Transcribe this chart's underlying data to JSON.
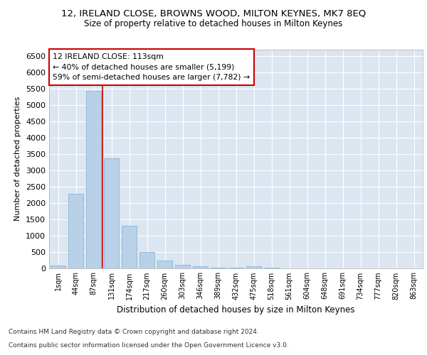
{
  "title1": "12, IRELAND CLOSE, BROWNS WOOD, MILTON KEYNES, MK7 8EQ",
  "title2": "Size of property relative to detached houses in Milton Keynes",
  "xlabel": "Distribution of detached houses by size in Milton Keynes",
  "ylabel": "Number of detached properties",
  "bar_color": "#b8d0e8",
  "bar_edge_color": "#7aafd4",
  "background_color": "#dce6f0",
  "grid_color": "#ffffff",
  "categories": [
    "1sqm",
    "44sqm",
    "87sqm",
    "131sqm",
    "174sqm",
    "217sqm",
    "260sqm",
    "303sqm",
    "346sqm",
    "389sqm",
    "432sqm",
    "475sqm",
    "518sqm",
    "561sqm",
    "604sqm",
    "648sqm",
    "691sqm",
    "734sqm",
    "777sqm",
    "820sqm",
    "863sqm"
  ],
  "values": [
    75,
    2280,
    5430,
    3360,
    1290,
    480,
    220,
    100,
    55,
    10,
    5,
    55,
    5,
    0,
    0,
    0,
    0,
    0,
    0,
    0,
    0
  ],
  "ylim": [
    0,
    6700
  ],
  "yticks": [
    0,
    500,
    1000,
    1500,
    2000,
    2500,
    3000,
    3500,
    4000,
    4500,
    5000,
    5500,
    6000,
    6500
  ],
  "property_line_x": 2.5,
  "annotation_text": "12 IRELAND CLOSE: 113sqm\n← 40% of detached houses are smaller (5,199)\n59% of semi-detached houses are larger (7,782) →",
  "annotation_box_color": "#ffffff",
  "annotation_box_edge": "#cc0000",
  "property_line_color": "#cc0000",
  "footer1": "Contains HM Land Registry data © Crown copyright and database right 2024.",
  "footer2": "Contains public sector information licensed under the Open Government Licence v3.0.",
  "title1_fontsize": 9.5,
  "title2_fontsize": 8.5,
  "ylabel_fontsize": 8,
  "xlabel_fontsize": 8.5,
  "ytick_fontsize": 8,
  "xtick_fontsize": 7,
  "footer_fontsize": 6.5
}
